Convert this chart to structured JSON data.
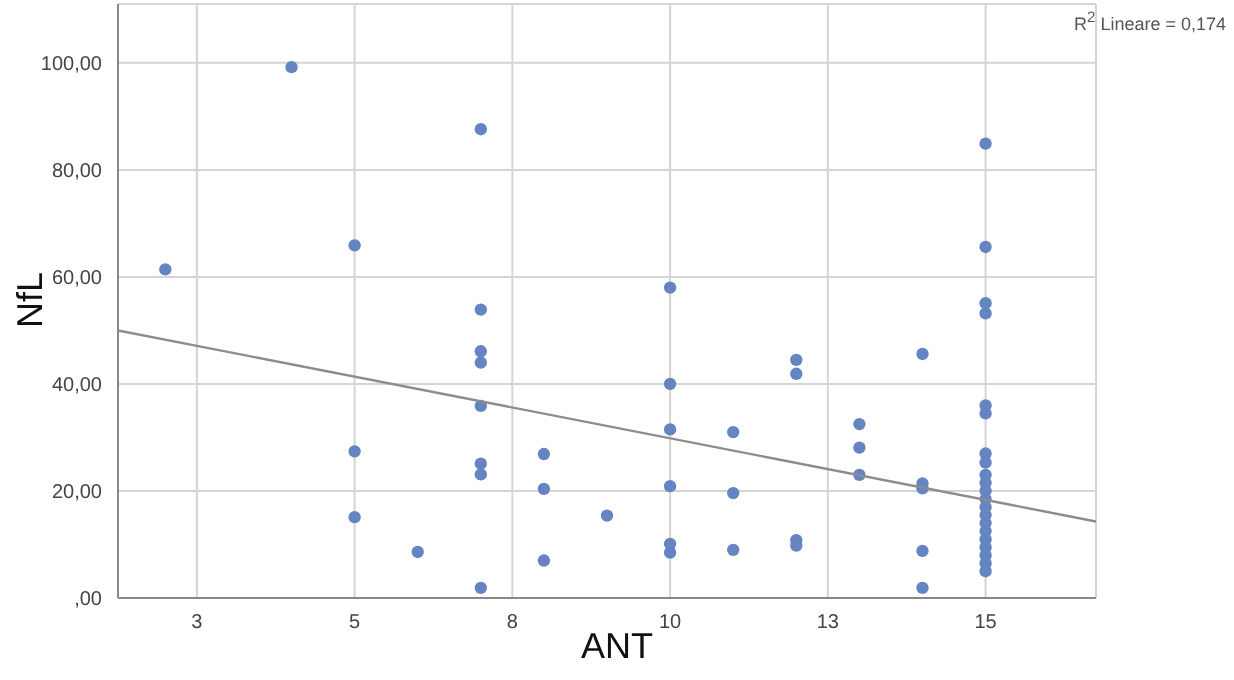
{
  "chart_data": {
    "type": "scatter",
    "xlabel": "ANT",
    "ylabel": "NfL",
    "annotations": [
      "R$^{2}$ Lineare = 0,174"
    ],
    "xlim": [
      1.25,
      16.75
    ],
    "ylim": [
      0,
      111
    ],
    "xticks": [
      {
        "value": 2.5,
        "label": "3"
      },
      {
        "value": 5,
        "label": "5"
      },
      {
        "value": 7.5,
        "label": "8"
      },
      {
        "value": 10,
        "label": "10"
      },
      {
        "value": 12.5,
        "label": "13"
      },
      {
        "value": 15,
        "label": "15"
      }
    ],
    "yticks": [
      {
        "value": 0,
        "label": ",00"
      },
      {
        "value": 20,
        "label": "20,00"
      },
      {
        "value": 40,
        "label": "40,00"
      },
      {
        "value": 60,
        "label": "60,00"
      },
      {
        "value": 80,
        "label": "80,00"
      },
      {
        "value": 100,
        "label": "100,00"
      }
    ],
    "grid": true,
    "series": [
      {
        "type": "scatter",
        "marker": "circle",
        "color": "#6584c2",
        "x": [
          2,
          4,
          5,
          5,
          5,
          6,
          7,
          7,
          7,
          7,
          7,
          7,
          7,
          7,
          8,
          8,
          8,
          9,
          10,
          10,
          10,
          10,
          10,
          10,
          11,
          11,
          11,
          12,
          12,
          12,
          12,
          13,
          13,
          13,
          14,
          14,
          14,
          14,
          14,
          15,
          15,
          15,
          15,
          15,
          15,
          15,
          15,
          15,
          15,
          15,
          15,
          15,
          15,
          15,
          15,
          15,
          15,
          15,
          15,
          15
        ],
        "values": [
          61.4,
          99.2,
          65.9,
          27.4,
          15.1,
          8.6,
          87.6,
          53.9,
          46.1,
          44.0,
          35.9,
          25.1,
          23.1,
          1.9,
          26.9,
          20.4,
          7.0,
          15.4,
          58.0,
          40.0,
          31.5,
          20.9,
          10.1,
          8.5,
          31.0,
          19.6,
          9.0,
          44.5,
          41.9,
          10.8,
          9.8,
          32.5,
          28.1,
          23.0,
          45.6,
          21.4,
          20.5,
          8.8,
          1.9,
          84.9,
          65.6,
          55.1,
          53.2,
          36.0,
          34.5,
          27.0,
          25.3,
          23,
          21.5,
          20,
          18.5,
          17,
          15.5,
          14,
          12.5,
          11,
          9.5,
          8,
          6.5,
          5
        ]
      },
      {
        "type": "line",
        "marker": "none",
        "color": "#8c8c8c",
        "x": [
          1.25,
          16.75
        ],
        "values": [
          50.0,
          14.3
        ]
      }
    ]
  }
}
